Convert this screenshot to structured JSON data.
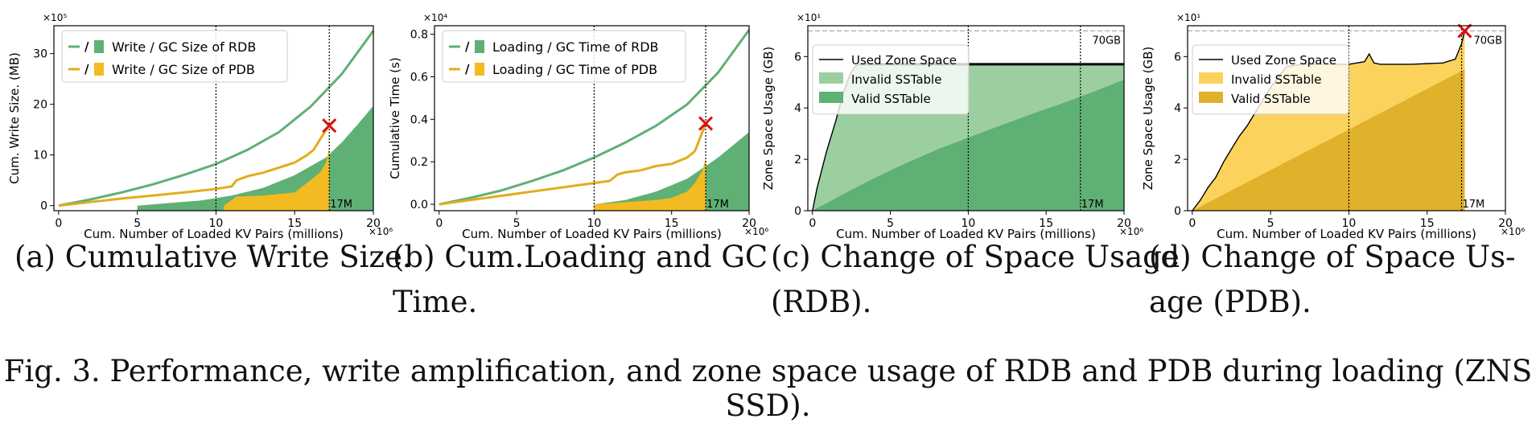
{
  "figure": {
    "caption": "Fig. 3.  Performance, write amplification, and zone space usage of RDB and PDB during loading (ZNS SSD).",
    "subcaptions": [
      {
        "line1": "(a)  Cumulative Write Size.",
        "line2": ""
      },
      {
        "line1": "(b)  Cum.Loading and GC",
        "line2": "Time."
      },
      {
        "line1": "(c)  Change of Space Usage",
        "line2": "(RDB)."
      },
      {
        "line1": "(d)  Change of Space Us-",
        "line2": "age (PDB)."
      }
    ],
    "colors": {
      "rdb": "#5fb074",
      "rdb_light": "#9ccf9f",
      "pdb": "#f2bb22",
      "pdb_line": "#e3ac1c",
      "pdb_light": "#fbd35c",
      "pdb_dark": "#e0b12a",
      "marker": "#e01010"
    }
  },
  "chart_data": [
    {
      "type": "line",
      "id": "a",
      "xlabel": "Cum. Number of Loaded KV Pairs (millions)",
      "ylabel": "Cum. Write Size. (MB)",
      "x_exponent": "×10⁶",
      "y_exponent": "×10⁵",
      "xlim": [
        -0.3,
        20
      ],
      "ylim": [
        -1,
        35.5
      ],
      "xticks": [
        0,
        5,
        10,
        15,
        20
      ],
      "yticks": [
        0,
        10,
        20,
        30
      ],
      "vlines": [
        10,
        17.2
      ],
      "annotation": "17M",
      "legend": [
        "Write / GC Size of RDB",
        "Write / GC Size of PDB"
      ],
      "series": [
        {
          "name": "Write Size of RDB",
          "x": [
            0,
            2,
            4,
            6,
            8,
            10,
            12,
            14,
            16,
            18,
            20
          ],
          "values": [
            0,
            1.2,
            2.6,
            4.2,
            6.1,
            8.2,
            11,
            14.5,
            19.5,
            26,
            34.5
          ]
        },
        {
          "name": "GC Size of RDB",
          "x": [
            5,
            7,
            9,
            11,
            13,
            15,
            17,
            18,
            19,
            20
          ],
          "values": [
            0,
            0.5,
            1,
            2,
            3.5,
            6,
            9.5,
            12.5,
            16,
            19.7
          ]
        },
        {
          "name": "Write Size of PDB",
          "x": [
            0,
            2,
            4,
            6,
            8,
            10,
            11,
            11.3,
            12,
            13,
            14,
            15,
            15.8,
            16.2,
            16.6,
            16.9,
            17.2
          ],
          "values": [
            0,
            0.7,
            1.4,
            2,
            2.6,
            3.3,
            3.8,
            5,
            5.8,
            6.5,
            7.5,
            8.5,
            10,
            11,
            13,
            14.5,
            15.8
          ]
        },
        {
          "name": "GC Size of PDB",
          "x": [
            10.5,
            11.3,
            13,
            15,
            15.8,
            16.2,
            16.6,
            17,
            17.2
          ],
          "values": [
            0,
            1.8,
            2,
            2.6,
            4.5,
            5.5,
            6.5,
            8.5,
            11.5
          ]
        }
      ],
      "marker": {
        "x": 17.2,
        "y": 15.8
      }
    },
    {
      "type": "line",
      "id": "b",
      "xlabel": "Cum. Number of Loaded KV Pairs (millions)",
      "ylabel": "Cumulative Time (s)",
      "x_exponent": "×10⁶",
      "y_exponent": "×10⁴",
      "xlim": [
        -0.3,
        20
      ],
      "ylim": [
        -0.03,
        0.84
      ],
      "xticks": [
        0,
        5,
        10,
        15,
        20
      ],
      "yticks": [
        0.0,
        0.2,
        0.4,
        0.6,
        0.8
      ],
      "ytick_labels": [
        "0.0",
        "0.2",
        "0.4",
        "0.6",
        "0.8"
      ],
      "vlines": [
        10,
        17.2
      ],
      "annotation": "17M",
      "legend": [
        "Loading / GC Time of RDB",
        "Loading / GC Time of PDB"
      ],
      "series": [
        {
          "name": "Loading Time of RDB",
          "x": [
            0,
            2,
            4,
            6,
            8,
            10,
            12,
            14,
            16,
            18,
            20
          ],
          "values": [
            0,
            0.03,
            0.065,
            0.11,
            0.16,
            0.22,
            0.29,
            0.37,
            0.47,
            0.62,
            0.82
          ]
        },
        {
          "name": "GC Time of RDB",
          "x": [
            10,
            12,
            14,
            16,
            18,
            20
          ],
          "values": [
            0,
            0.02,
            0.06,
            0.12,
            0.22,
            0.34
          ]
        },
        {
          "name": "Loading Time of PDB",
          "x": [
            0,
            2,
            4,
            6,
            8,
            10,
            11,
            11.5,
            12,
            13,
            14,
            15,
            16,
            16.5,
            17.2
          ],
          "values": [
            0,
            0.02,
            0.04,
            0.06,
            0.08,
            0.1,
            0.11,
            0.14,
            0.15,
            0.16,
            0.18,
            0.19,
            0.22,
            0.25,
            0.38
          ]
        },
        {
          "name": "GC Time of PDB",
          "x": [
            10,
            12,
            14,
            15,
            16,
            16.5,
            17,
            17.2
          ],
          "values": [
            0,
            0.01,
            0.02,
            0.03,
            0.06,
            0.1,
            0.16,
            0.22
          ]
        }
      ],
      "marker": {
        "x": 17.2,
        "y": 0.38
      }
    },
    {
      "type": "area",
      "id": "c",
      "xlabel": "Cum. Number of Loaded KV Pairs (millions)",
      "ylabel": "Zone Space Usage (GB)",
      "x_exponent": "×10⁶",
      "y_exponent": "×10¹",
      "xlim": [
        -0.3,
        20
      ],
      "ylim": [
        0,
        7.2
      ],
      "xticks": [
        0,
        5,
        10,
        15,
        20
      ],
      "yticks": [
        0,
        2,
        4,
        6
      ],
      "vlines": [
        10,
        17.2
      ],
      "hline": 7,
      "capacity_label": "70GB",
      "annotation": "17M",
      "legend": [
        "Used Zone Space",
        "Invalid SSTable",
        "Valid SSTable"
      ],
      "series": [
        {
          "name": "Used Zone Space",
          "x": [
            0,
            0.3,
            0.6,
            0.9,
            1.2,
            1.5,
            1.8,
            2.1,
            2.4,
            2.7,
            3.0,
            20
          ],
          "values": [
            0,
            0.9,
            1.6,
            2.3,
            2.9,
            3.5,
            4.2,
            4.8,
            5.3,
            5.6,
            5.7,
            5.7
          ]
        },
        {
          "name": "Valid SSTable",
          "x": [
            0,
            2,
            4,
            6,
            8,
            10,
            12,
            14,
            16,
            18,
            20
          ],
          "values": [
            0,
            0.65,
            1.28,
            1.85,
            2.38,
            2.85,
            3.3,
            3.75,
            4.17,
            4.62,
            5.1
          ]
        }
      ]
    },
    {
      "type": "area",
      "id": "d",
      "xlabel": "Cum. Number of Loaded KV Pairs (millions)",
      "ylabel": "Zone Space Usage (GB)",
      "x_exponent": "×10⁶",
      "y_exponent": "×10¹",
      "xlim": [
        -0.3,
        20
      ],
      "ylim": [
        0,
        7.2
      ],
      "xticks": [
        0,
        5,
        10,
        15,
        20
      ],
      "yticks": [
        0,
        2,
        4,
        6
      ],
      "vlines": [
        10,
        17.2
      ],
      "hline": 7,
      "capacity_label": "70GB",
      "annotation": "17M",
      "legend": [
        "Used Zone Space",
        "Invalid SSTable",
        "Valid SSTable"
      ],
      "series": [
        {
          "name": "Used Zone Space",
          "x": [
            0,
            0.5,
            1,
            1.5,
            2,
            2.5,
            3,
            3.5,
            4,
            4.5,
            5,
            5.5,
            6,
            7,
            8,
            9,
            10,
            11,
            11.3,
            11.6,
            12,
            14,
            16,
            16.8,
            17.2,
            17.4
          ],
          "values": [
            0,
            0.4,
            0.9,
            1.3,
            1.9,
            2.4,
            2.9,
            3.3,
            3.8,
            4.3,
            4.8,
            5.2,
            5.6,
            5.7,
            5.7,
            5.7,
            5.7,
            5.8,
            6.1,
            5.75,
            5.7,
            5.7,
            5.75,
            5.9,
            6.5,
            7
          ]
        },
        {
          "name": "Valid SSTable",
          "x": [
            0,
            17.4
          ],
          "values": [
            0,
            5.5
          ]
        }
      ],
      "marker": {
        "x": 17.4,
        "y": 7
      }
    }
  ]
}
